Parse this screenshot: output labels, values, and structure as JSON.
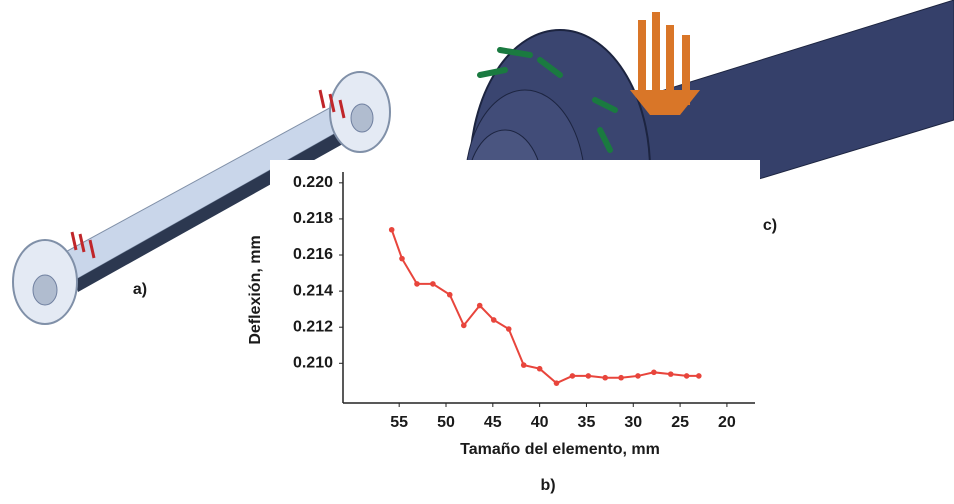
{
  "chart_data": {
    "type": "line",
    "x_label": "Tamaño del elemento, mm",
    "y_label": "Deflexión, mm",
    "caption": "b)",
    "annotations": [
      "a)",
      "c)"
    ],
    "color": "#e8453c",
    "x": [
      55.8,
      54.7,
      53.1,
      51.4,
      49.6,
      48.1,
      46.4,
      44.9,
      43.3,
      41.7,
      40.0,
      38.2,
      36.5,
      34.8,
      33.0,
      31.3,
      29.5,
      27.8,
      26.0,
      24.3,
      23.0
    ],
    "values": [
      0.2174,
      0.2158,
      0.2144,
      0.2144,
      0.2138,
      0.2121,
      0.2132,
      0.2124,
      0.2119,
      0.2099,
      0.2097,
      0.2089,
      0.2093,
      0.2093,
      0.2092,
      0.2092,
      0.2093,
      0.2095,
      0.2094,
      0.2093,
      0.2093
    ],
    "xlim": [
      61,
      17
    ],
    "xticks": [
      55,
      50,
      45,
      40,
      35,
      30,
      25,
      20
    ],
    "ylim": [
      0.2078,
      0.2206
    ],
    "yticks": [
      {
        "value": 0.22,
        "label": "0.220"
      },
      0.218,
      0.216,
      0.214,
      0.212,
      {
        "value": 0.21,
        "label": "0.210"
      }
    ]
  }
}
